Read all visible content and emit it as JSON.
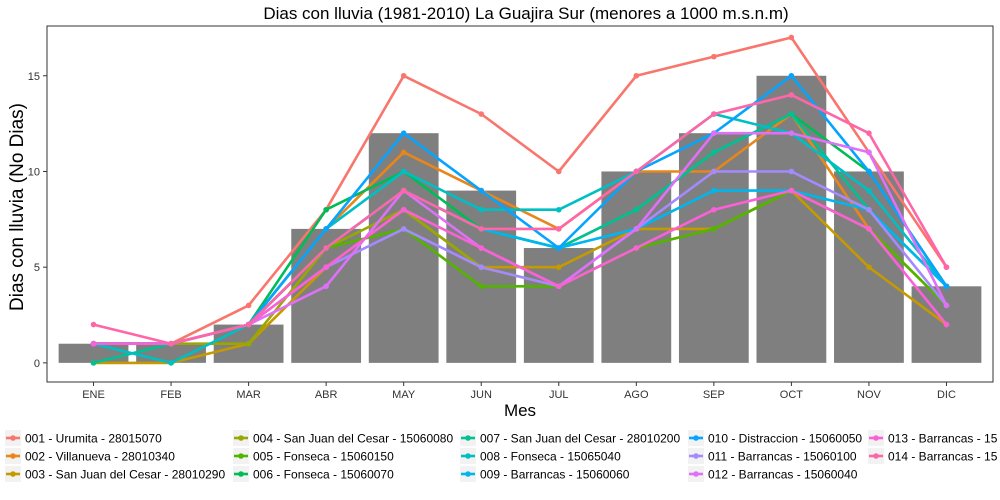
{
  "chart_data": {
    "type": "bar",
    "title": "Dias con lluvia (1981-2010) La Guajira Sur (menores a 1000 m.s.n.m)",
    "xlabel": "Mes",
    "ylabel": "Dias con lluvia (No Dias)",
    "categories": [
      "ENE",
      "FEB",
      "MAR",
      "ABR",
      "MAY",
      "JUN",
      "JUL",
      "AGO",
      "SEP",
      "OCT",
      "NOV",
      "DIC"
    ],
    "ylim": [
      -1,
      17.6
    ],
    "yticks": [
      0,
      5,
      10,
      15
    ],
    "bars": {
      "color": "#7f7f7f",
      "values": [
        1,
        1,
        2,
        7,
        12,
        9,
        6,
        10,
        12,
        15,
        10,
        4
      ]
    },
    "grid": false,
    "legend_position": "bottom",
    "series": [
      {
        "name": "001 - Urumita - 28015070",
        "color": "#f8766d",
        "values": [
          1,
          1,
          3,
          8,
          15,
          13,
          10,
          15,
          16,
          17,
          11,
          5
        ]
      },
      {
        "name": "002 - Villanueva - 28010340",
        "color": "#e7861b",
        "values": [
          1,
          1,
          2,
          7,
          11,
          9,
          7,
          10,
          10,
          13,
          7,
          3
        ]
      },
      {
        "name": "003 - San Juan del Cesar - 28010290",
        "color": "#c49a00",
        "values": [
          0,
          0,
          1,
          5,
          8,
          5,
          5,
          7,
          7,
          9,
          5,
          2
        ]
      },
      {
        "name": "004 - San Juan del Cesar - 15060080",
        "color": "#99a800",
        "values": [
          1,
          1,
          1,
          6,
          8,
          5,
          4,
          6,
          7,
          9,
          7,
          3
        ]
      },
      {
        "name": "005 - Fonseca - 15060150",
        "color": "#53b400",
        "values": [
          1,
          1,
          2,
          6,
          7,
          4,
          4,
          6,
          7,
          9,
          7,
          3
        ]
      },
      {
        "name": "006 - Fonseca - 15060070",
        "color": "#00bc56",
        "values": [
          1,
          1,
          2,
          8,
          10,
          7,
          6,
          8,
          11,
          13,
          10,
          4
        ]
      },
      {
        "name": "007 - San Juan del Cesar - 28010200",
        "color": "#00c094",
        "values": [
          0,
          1,
          2,
          6,
          9,
          7,
          6,
          8,
          11,
          13,
          8,
          4
        ]
      },
      {
        "name": "008 - Fonseca - 15065040",
        "color": "#00bfc4",
        "values": [
          1,
          0,
          2,
          7,
          10,
          8,
          8,
          10,
          13,
          12,
          9,
          4
        ]
      },
      {
        "name": "009 - Barrancas - 15060060",
        "color": "#00b6eb",
        "values": [
          1,
          1,
          2,
          6,
          9,
          7,
          6,
          7,
          9,
          9,
          8,
          4
        ]
      },
      {
        "name": "010 - Distraccion - 15060050",
        "color": "#06a4ff",
        "values": [
          1,
          1,
          2,
          7,
          12,
          9,
          6,
          10,
          12,
          15,
          10,
          4
        ]
      },
      {
        "name": "011 - Barrancas - 15060100",
        "color": "#a58aff",
        "values": [
          1,
          1,
          2,
          5,
          7,
          5,
          4,
          7,
          10,
          10,
          8,
          3
        ]
      },
      {
        "name": "012 - Barrancas - 15060040",
        "color": "#df70f8",
        "values": [
          1,
          1,
          2,
          4,
          9,
          6,
          4,
          7,
          12,
          12,
          11,
          3
        ]
      },
      {
        "name": "013 - Barrancas - 15",
        "color": "#fb61d7",
        "values": [
          1,
          1,
          2,
          5,
          8,
          6,
          4,
          6,
          8,
          9,
          7,
          2
        ]
      },
      {
        "name": "014 - Barrancas - 15",
        "color": "#ff66a8",
        "values": [
          2,
          1,
          2,
          6,
          9,
          7,
          7,
          10,
          13,
          14,
          12,
          5
        ]
      }
    ]
  }
}
